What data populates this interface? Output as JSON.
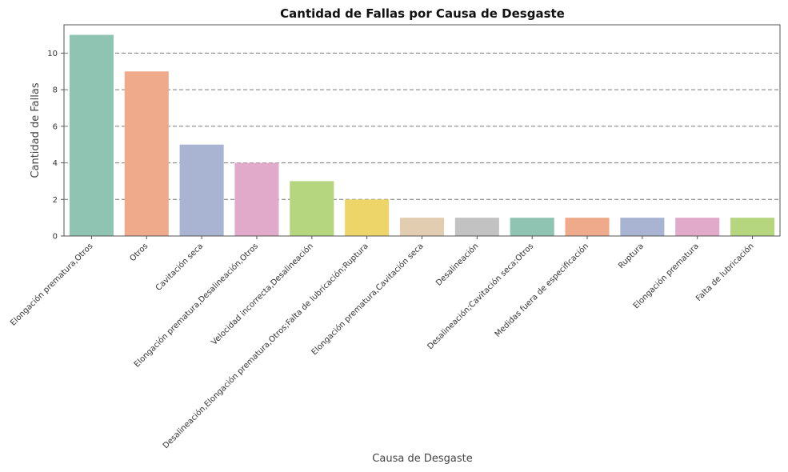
{
  "chart_data": {
    "type": "bar",
    "title": "Cantidad de Fallas por Causa de Desgaste",
    "xlabel": "Causa de Desgaste",
    "ylabel": "Cantidad de Fallas",
    "ylim": [
      0,
      11.55
    ],
    "yticks": [
      0,
      2,
      4,
      6,
      8,
      10
    ],
    "grid": "y-dashed",
    "categories": [
      "Elongación prematura,Otros",
      "Otros",
      "Cavitación seca",
      "Elongación prematura,Desalineación,Otros",
      "Velocidad incorrecta,Desalineación",
      "Desalineación,Elongación prematura,Otros;Falta de lubricación;Ruptura",
      "Elongación prematura,Cavitación seca",
      "Desalineación",
      "Desalineación;Cavitación seca;Otros",
      "Medidas fuera de especificación",
      "Ruptura",
      "Elongación prematura",
      "Falta de lubricación"
    ],
    "values": [
      11,
      9,
      5,
      4,
      3,
      2,
      1,
      1,
      1,
      1,
      1,
      1,
      1
    ],
    "colors": [
      "#8fc4b3",
      "#eeaa8a",
      "#a8b4d1",
      "#e1a9ca",
      "#b5d57f",
      "#eed56a",
      "#e3cdb0",
      "#c2c2c2",
      "#8fc4b3",
      "#eeaa8a",
      "#a8b4d1",
      "#e1a9ca",
      "#b5d57f"
    ]
  }
}
